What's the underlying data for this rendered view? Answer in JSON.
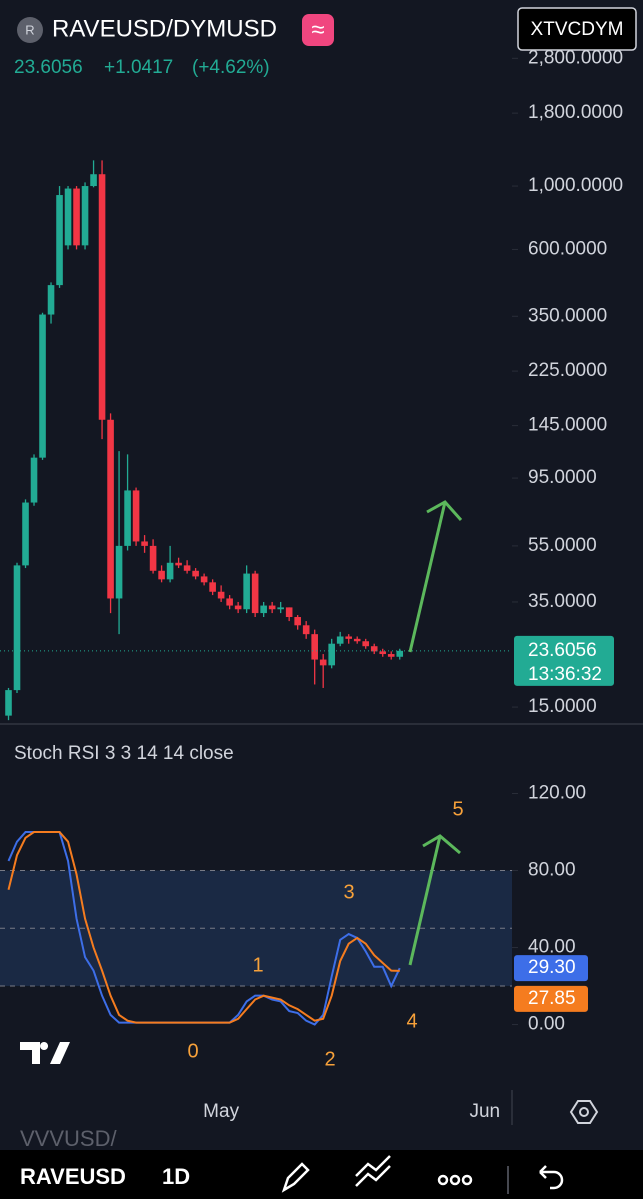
{
  "header": {
    "symbol": "RAVEUSD/DYMUSD",
    "logo": "R",
    "badge": "≈",
    "price": "23.6056",
    "change": "+1.0417",
    "change_pct": "(+4.62%)",
    "button": "XTVCDYM"
  },
  "annotations": {
    "waves": [
      "0",
      "1",
      "2",
      "3",
      "4",
      "5"
    ]
  },
  "toolbar": {
    "previous_symbol": "VVVUSD/",
    "symbol": "RAVEUSD",
    "interval": "1D"
  },
  "chart_data": [
    {
      "type": "candlestick",
      "log": true,
      "x": [
        0,
        1,
        2,
        3,
        4,
        5,
        6,
        7,
        8,
        9,
        10,
        11,
        12,
        13,
        14,
        15,
        16,
        17,
        18,
        19,
        20,
        21,
        22,
        23,
        24,
        25,
        26,
        27,
        28,
        29,
        30,
        31,
        32,
        33,
        34,
        35,
        36,
        37,
        38,
        39,
        40,
        41,
        42,
        43,
        44,
        45,
        46
      ],
      "open": [
        14,
        17.2,
        47,
        78,
        112,
        355,
        450,
        620,
        980,
        620,
        1000,
        1100,
        152,
        36,
        55,
        86,
        57,
        55,
        45,
        42,
        48,
        47,
        45,
        43,
        41,
        38,
        36,
        34,
        33,
        44,
        32,
        34,
        33,
        33.5,
        31,
        29,
        27,
        22,
        21,
        25,
        26.5,
        26,
        25.5,
        24.5,
        23.5,
        23,
        22.5
      ],
      "high": [
        17.5,
        48,
        80,
        115,
        360,
        460,
        1000,
        1000,
        1000,
        1030,
        1230,
        1230,
        160,
        118,
        115,
        88,
        60,
        58,
        47,
        55,
        50,
        49,
        46,
        44,
        42,
        40,
        37,
        35,
        47,
        45,
        35,
        35,
        35,
        33.5,
        31.5,
        30,
        28,
        23,
        26,
        27.5,
        27,
        26.5,
        26,
        25,
        24,
        23.5,
        24
      ],
      "low": [
        13.5,
        16.8,
        46,
        76,
        110,
        330,
        440,
        600,
        600,
        600,
        990,
        130,
        32,
        27,
        53,
        55,
        52,
        44,
        41,
        41,
        46,
        44,
        42,
        40,
        37,
        35,
        33,
        32,
        32,
        31,
        31,
        32,
        32,
        30,
        28,
        26,
        18,
        17.5,
        20.5,
        24.5,
        25,
        25,
        24,
        23,
        22.5,
        22,
        22
      ],
      "close": [
        17.2,
        47,
        78,
        112,
        355,
        450,
        930,
        980,
        620,
        1000,
        1100,
        152,
        36,
        55,
        86,
        57,
        55,
        45,
        42,
        48,
        47,
        45,
        43,
        41,
        38,
        36,
        34,
        33,
        44,
        32,
        34,
        33,
        33.5,
        31,
        29,
        27,
        22,
        21,
        25,
        26.5,
        26,
        25.5,
        24.5,
        23.5,
        23,
        22.5,
        23.6056
      ],
      "up_color": "#22ab94",
      "down_color": "#f23645",
      "ylim": [
        13.3,
        4480
      ],
      "yticks": [
        {
          "value": 2800,
          "label": "2,800.0000"
        },
        {
          "value": 1800,
          "label": "1,800.0000"
        },
        {
          "value": 1000,
          "label": "1,000.0000"
        },
        {
          "value": 600,
          "label": "600.0000"
        },
        {
          "value": 350,
          "label": "350.0000"
        },
        {
          "value": 225,
          "label": "225.0000"
        },
        {
          "value": 145,
          "label": "145.0000"
        },
        {
          "value": 95,
          "label": "95.0000"
        },
        {
          "value": 55,
          "label": "55.0000"
        },
        {
          "value": 35,
          "label": "35.0000"
        },
        {
          "value": 15,
          "label": "15.0000"
        }
      ],
      "xlim": [
        -1,
        59.2
      ],
      "xticks": [
        {
          "value": 25,
          "label": "May"
        },
        {
          "value": 56,
          "label": "Jun"
        }
      ],
      "last_price": 23.6056,
      "countdown": "13:36:32"
    },
    {
      "type": "line",
      "title": "Stoch RSI 3 3 14 14 close",
      "x": [
        0,
        1,
        2,
        3,
        4,
        5,
        6,
        7,
        8,
        9,
        10,
        11,
        12,
        13,
        14,
        15,
        16,
        17,
        18,
        19,
        20,
        21,
        22,
        23,
        24,
        25,
        26,
        27,
        28,
        29,
        30,
        31,
        32,
        33,
        34,
        35,
        36,
        37,
        38,
        39,
        40,
        41,
        42,
        43,
        44,
        45,
        46
      ],
      "series": [
        {
          "color": "#3d6ee8",
          "values": [
            85,
            95,
            100,
            100,
            100,
            100,
            100,
            85,
            55,
            35,
            28,
            15,
            5,
            1,
            1,
            1,
            1,
            1,
            1,
            1,
            1,
            1,
            1,
            1,
            1,
            1,
            1,
            5,
            12,
            15,
            15,
            13,
            12,
            7,
            6,
            2,
            0,
            5,
            25,
            44,
            47,
            45,
            38,
            30,
            30,
            20,
            29.3
          ],
          "value_label": "29.30"
        },
        {
          "color": "#f57c1f",
          "values": [
            70,
            88,
            97,
            100,
            100,
            100,
            100,
            95,
            78,
            55,
            40,
            28,
            15,
            5,
            2,
            1,
            1,
            1,
            1,
            1,
            1,
            1,
            1,
            1,
            1,
            1,
            1,
            3,
            8,
            13,
            15,
            14,
            13,
            10,
            8,
            5,
            2,
            3,
            15,
            33,
            42,
            45,
            42,
            36,
            32,
            28,
            27.85
          ],
          "value_label": "27.85"
        }
      ],
      "ylim": [
        -34,
        153
      ],
      "yticks": [
        {
          "value": 120,
          "label": "120.00"
        },
        {
          "value": 80,
          "label": "80.00"
        },
        {
          "value": 40,
          "label": "40.00"
        },
        {
          "value": 0,
          "label": "0.00"
        }
      ],
      "band": [
        20,
        80
      ],
      "midline": 50,
      "xlim": [
        -1,
        59.2
      ]
    }
  ]
}
